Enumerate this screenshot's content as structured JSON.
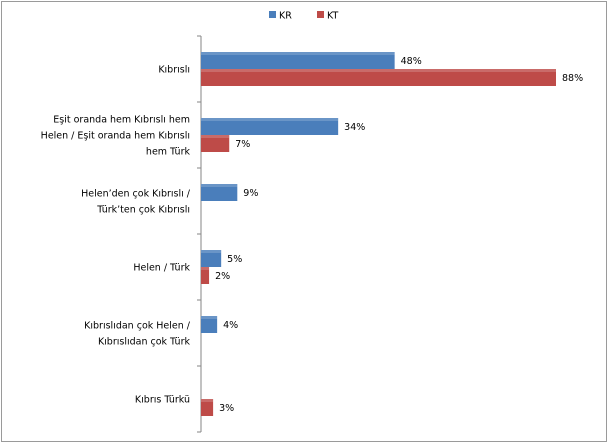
{
  "chart_data": {
    "type": "bar",
    "orientation": "horizontal",
    "categories": [
      [
        "Kıbrıslı"
      ],
      [
        "Eşit oranda hem Kıbrıslı hem",
        "Helen / Eşit oranda hem Kıbrıslı",
        "hem Türk"
      ],
      [
        "Helen’den çok Kıbrıslı /",
        "Türk’ten çok Kıbrıslı"
      ],
      [
        "Helen / Türk"
      ],
      [
        "Kıbrıslıdan çok Helen /",
        "Kıbrıslıdan çok Türk"
      ],
      [
        "Kıbrıs Türkü"
      ]
    ],
    "series": [
      {
        "name": "KR",
        "color": "#4a7ebb",
        "values": [
          48,
          34,
          9,
          5,
          4,
          null
        ],
        "labels": [
          "48%",
          "34%",
          "9%",
          "5%",
          "4%",
          ""
        ]
      },
      {
        "name": "KT",
        "color": "#be4b48",
        "values": [
          88,
          7,
          null,
          2,
          null,
          3
        ],
        "labels": [
          "88%",
          "7%",
          "",
          "2%",
          "",
          "3%"
        ]
      }
    ],
    "xlim": [
      0,
      100
    ],
    "legend_position": "top",
    "grid": false
  }
}
